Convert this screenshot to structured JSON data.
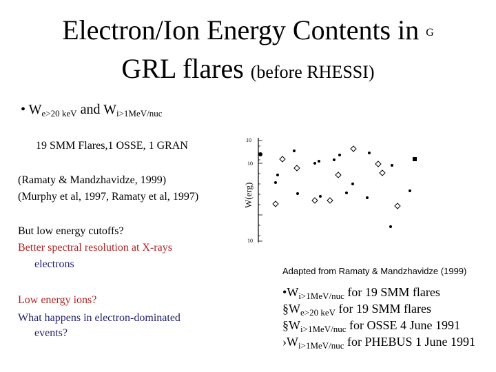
{
  "slide": {
    "title_line1": "Electron/Ion Energy Contents in",
    "title_line1_trail": "G",
    "title_line2_main": "GRL flares",
    "title_line2_small": "(before RHESSI)",
    "bullet_marker": "•",
    "bullet_w": "W",
    "bullet_sub1": "e>20 keV",
    "bullet_and": "and W",
    "bullet_sub2": "i>1MeV/nuc",
    "flares_line": "19 SMM Flares,1 OSSE, 1 GRAN",
    "ref1": "(Ramaty & Mandzhavidze, 1999)",
    "ref2": "(Murphy et al, 1997, Ramaty et al, 1997)",
    "q1": "But low energy cutoffs?",
    "q2a": "Better spectral resolution at X-rays",
    "q2b": "electrons",
    "q3": "Low energy ions?",
    "q4a": "What happens in electron-dominated",
    "q4b": "events?"
  },
  "figure": {
    "y_axis_label": "W(erg)",
    "y_tick_top": "10",
    "y_tick_2": "10",
    "y_tick_bottom": "10",
    "caption": "Adapted from Ramaty & Mandzhavidze (1999)"
  },
  "legend": [
    {
      "marker": "•",
      "w": "W",
      "sub": "i>1MeV/nuc",
      "text": "for 19 SMM flares"
    },
    {
      "marker": "§",
      "w": "W",
      "sub": "e>20 keV",
      "text": "for 19 SMM flares"
    },
    {
      "marker": "§",
      "w": "W",
      "sub": "i>1MeV/nuc",
      "text": "for OSSE 4 June 1991"
    },
    {
      "marker": "›",
      "w": "W",
      "sub": "i>1MeV/nuc",
      "text": "for PHEBUS 1 June 1991"
    }
  ]
}
